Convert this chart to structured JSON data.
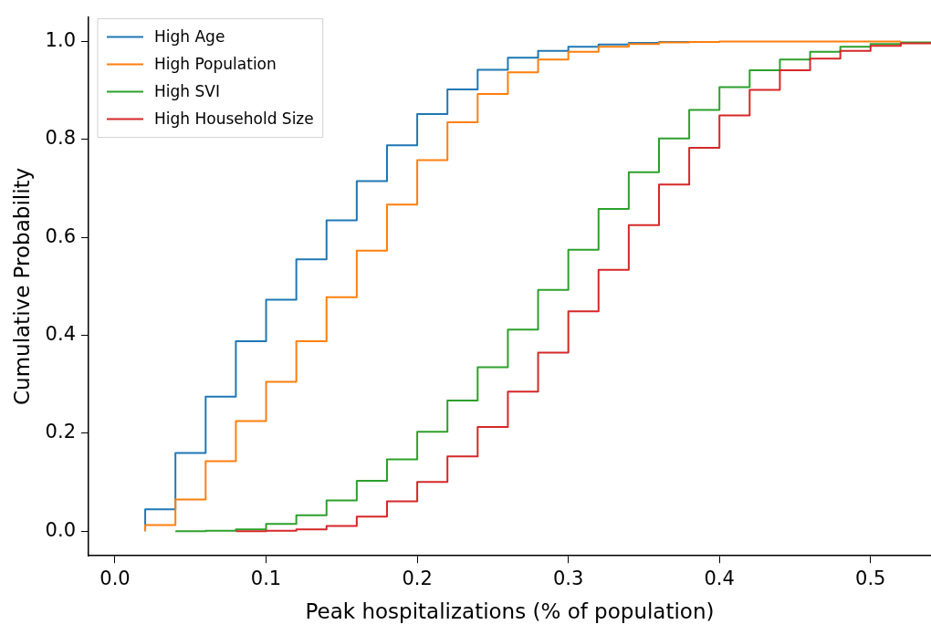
{
  "chart_data": {
    "type": "step",
    "xlabel": "Peak hospitalizations (% of population)",
    "ylabel": "Cumulative Probability",
    "xlim": [
      -0.0175,
      0.54
    ],
    "ylim": [
      -0.05,
      1.05
    ],
    "xticks": [
      {
        "value": 0,
        "label": "0.0"
      },
      0.1,
      0.2,
      0.3,
      0.4,
      0.5
    ],
    "yticks": [
      {
        "value": 0,
        "label": "0.0"
      },
      0.2,
      0.4,
      0.6,
      0.8,
      {
        "value": 1,
        "label": "1.0"
      }
    ],
    "legend": "top left",
    "grid": false,
    "marker": "none",
    "line_style": "solid",
    "series": [
      {
        "name": "High Age",
        "color": "#1f77b4",
        "x": [
          0.02,
          0.02,
          0.04,
          0.06,
          0.08,
          0.1,
          0.12,
          0.14,
          0.16,
          0.18,
          0.2,
          0.22,
          0.24,
          0.26,
          0.28,
          0.3,
          0.32,
          0.34,
          0.36,
          0.38
        ],
        "values": [
          0,
          0.045,
          0.16,
          0.275,
          0.388,
          0.473,
          0.555,
          0.635,
          0.715,
          0.788,
          0.852,
          0.902,
          0.942,
          0.967,
          0.981,
          0.989,
          0.994,
          0.997,
          0.999,
          1
        ]
      },
      {
        "name": "High Population",
        "color": "#ff7f0e",
        "x": [
          0.02,
          0.02,
          0.04,
          0.06,
          0.08,
          0.1,
          0.12,
          0.14,
          0.16,
          0.18,
          0.2,
          0.22,
          0.24,
          0.26,
          0.28,
          0.3,
          0.32,
          0.34,
          0.36,
          0.38,
          0.4,
          0.52
        ],
        "values": [
          0,
          0.013,
          0.065,
          0.143,
          0.225,
          0.305,
          0.388,
          0.478,
          0.573,
          0.667,
          0.758,
          0.835,
          0.893,
          0.937,
          0.963,
          0.979,
          0.989,
          0.995,
          0.998,
          0.999,
          1,
          1
        ]
      },
      {
        "name": "High SVI",
        "color": "#2ca02c",
        "x": [
          0.04,
          0.06,
          0.08,
          0.1,
          0.12,
          0.14,
          0.16,
          0.18,
          0.2,
          0.22,
          0.24,
          0.26,
          0.28,
          0.3,
          0.32,
          0.34,
          0.36,
          0.38,
          0.4,
          0.42,
          0.44,
          0.46,
          0.48,
          0.5,
          0.52,
          0.54
        ],
        "values": [
          0,
          0.001,
          0.004,
          0.015,
          0.033,
          0.063,
          0.103,
          0.147,
          0.203,
          0.267,
          0.335,
          0.412,
          0.493,
          0.575,
          0.658,
          0.733,
          0.802,
          0.86,
          0.907,
          0.941,
          0.963,
          0.979,
          0.989,
          0.995,
          0.998,
          1
        ]
      },
      {
        "name": "High Household Size",
        "color": "#d62728",
        "x": [
          0.08,
          0.1,
          0.12,
          0.14,
          0.16,
          0.18,
          0.2,
          0.22,
          0.24,
          0.26,
          0.28,
          0.3,
          0.32,
          0.34,
          0.36,
          0.38,
          0.4,
          0.42,
          0.44,
          0.46,
          0.48,
          0.5,
          0.52,
          0.54
        ],
        "values": [
          0,
          0.001,
          0.004,
          0.011,
          0.03,
          0.061,
          0.101,
          0.153,
          0.213,
          0.285,
          0.365,
          0.449,
          0.534,
          0.625,
          0.708,
          0.783,
          0.849,
          0.901,
          0.941,
          0.965,
          0.981,
          0.991,
          0.996,
          0.999
        ]
      }
    ]
  }
}
